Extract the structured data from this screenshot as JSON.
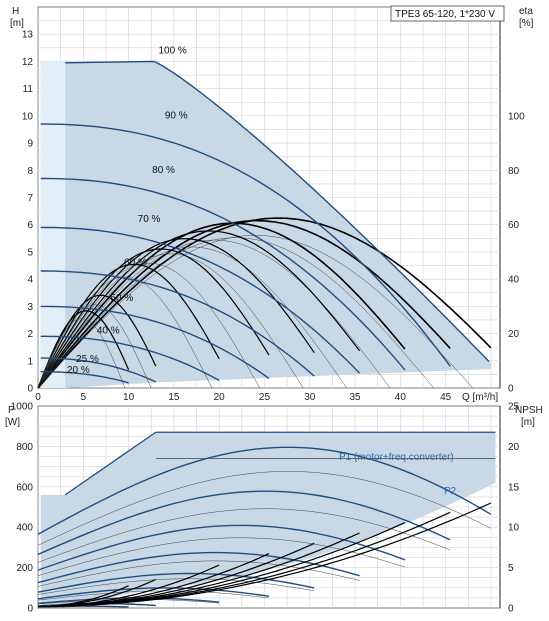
{
  "title": "TPE3 65-120, 1*230 V",
  "colors": {
    "grid": "#d0d4d8",
    "axis": "#222222",
    "area": "#c9d8e5",
    "area_light": "#e4eef6",
    "curve": "#1f4e86",
    "thin": "#444444",
    "eta": "#000000",
    "legend_text": "#2a6aa8"
  },
  "chart_data": [
    {
      "type": "line",
      "name": "head-chart",
      "xlabel": "Q [m³/h]",
      "ylabel": "H\n[m]",
      "y2label": "eta\n[%]",
      "xlim": [
        0,
        51
      ],
      "ylim": [
        0,
        14
      ],
      "y2lim": [
        0,
        140
      ],
      "xticks": [
        0,
        5,
        10,
        15,
        20,
        25,
        30,
        35,
        40,
        45
      ],
      "yticks": [
        0,
        1,
        2,
        3,
        4,
        5,
        6,
        7,
        8,
        9,
        10,
        11,
        12,
        13
      ],
      "y2ticks": [
        0,
        20,
        40,
        60,
        80,
        100
      ],
      "curve_labels": [
        "100 %",
        "90 %",
        "80 %",
        "70 %",
        "60 %",
        "50 %",
        "40 %",
        "25 %",
        "20 %"
      ],
      "speeds": [
        {
          "label": "100 %",
          "shut_off_head": 12.0,
          "q_max": 50.0
        },
        {
          "label": "90 %",
          "shut_off_head": 9.7,
          "q_max": 45.5
        },
        {
          "label": "80 %",
          "shut_off_head": 7.7,
          "q_max": 40.5
        },
        {
          "label": "70 %",
          "shut_off_head": 5.9,
          "q_max": 35.5
        },
        {
          "label": "60 %",
          "shut_off_head": 4.3,
          "q_max": 30.5
        },
        {
          "label": "50 %",
          "shut_off_head": 3.0,
          "q_max": 25.5
        },
        {
          "label": "40 %",
          "shut_off_head": 1.9,
          "q_max": 20.0
        },
        {
          "label": "25 %",
          "shut_off_head": 1.1,
          "q_max": 13.0
        },
        {
          "label": "20 %",
          "shut_off_head": 0.6,
          "q_max": 10.0
        }
      ],
      "efficiency_curves": [
        {
          "q_max": 50,
          "peak": 66
        },
        {
          "q_max": 45.5,
          "peak": 65
        },
        {
          "q_max": 40.5,
          "peak": 64
        },
        {
          "q_max": 35.5,
          "peak": 61
        },
        {
          "q_max": 30.5,
          "peak": 58
        },
        {
          "q_max": 25.5,
          "peak": 54
        },
        {
          "q_max": 20,
          "peak": 48
        },
        {
          "q_max": 13,
          "peak": 36
        },
        {
          "q_max": 10,
          "peak": 30
        }
      ],
      "min_curve_head_at_qmax": 1.0
    },
    {
      "type": "line",
      "name": "power-chart",
      "xlabel": "",
      "ylabel": "P\n[W]",
      "y2label": "NPSH\n[m]",
      "xlim": [
        0,
        51
      ],
      "ylim": [
        0,
        1000
      ],
      "y2lim": [
        0,
        25
      ],
      "yticks": [
        0,
        200,
        400,
        600,
        800,
        1000
      ],
      "y2ticks": [
        0,
        5,
        10,
        15,
        20,
        25
      ],
      "legend": [
        "P1 (motor+freq.converter)",
        "P2"
      ],
      "p1_max": 870,
      "p2_max": 740,
      "npsh_end": 12.8
    }
  ]
}
